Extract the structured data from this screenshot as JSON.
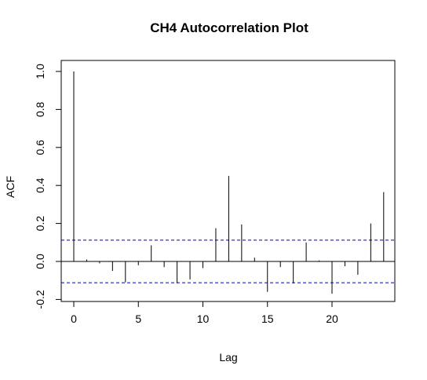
{
  "chart_data": {
    "type": "bar",
    "title": "CH4 Autocorrelation Plot",
    "xlabel": "Lag",
    "ylabel": "ACF",
    "xlim": [
      -1,
      25
    ],
    "ylim": [
      -0.2,
      1.0
    ],
    "x_ticks": [
      0,
      5,
      10,
      15,
      20
    ],
    "x_tick_labels": [
      "0",
      "5",
      "10",
      "15",
      "20"
    ],
    "y_ticks": [
      -0.2,
      0.0,
      0.2,
      0.4,
      0.6,
      0.8,
      1.0
    ],
    "y_tick_labels": [
      "-0.2",
      "0.0",
      "0.2",
      "0.4",
      "0.6",
      "0.8",
      "1.0"
    ],
    "confidence_bound": 0.112,
    "zero_line": 0,
    "grid": false,
    "colors": {
      "spike": "#000000",
      "bound": "#0000cc",
      "frame": "#000000"
    },
    "series": [
      {
        "x": [
          0,
          1,
          2,
          3,
          4,
          5,
          6,
          7,
          8,
          9,
          10,
          11,
          12,
          13,
          14,
          15,
          16,
          17,
          18,
          19,
          20,
          21,
          22,
          23,
          24
        ],
        "values": [
          1.0,
          0.01,
          -0.01,
          -0.05,
          -0.11,
          -0.02,
          0.085,
          -0.03,
          -0.115,
          -0.095,
          -0.035,
          0.175,
          0.45,
          0.195,
          0.02,
          -0.16,
          -0.03,
          -0.115,
          0.1,
          0.005,
          -0.17,
          -0.025,
          -0.07,
          0.2,
          0.365
        ]
      }
    ]
  }
}
